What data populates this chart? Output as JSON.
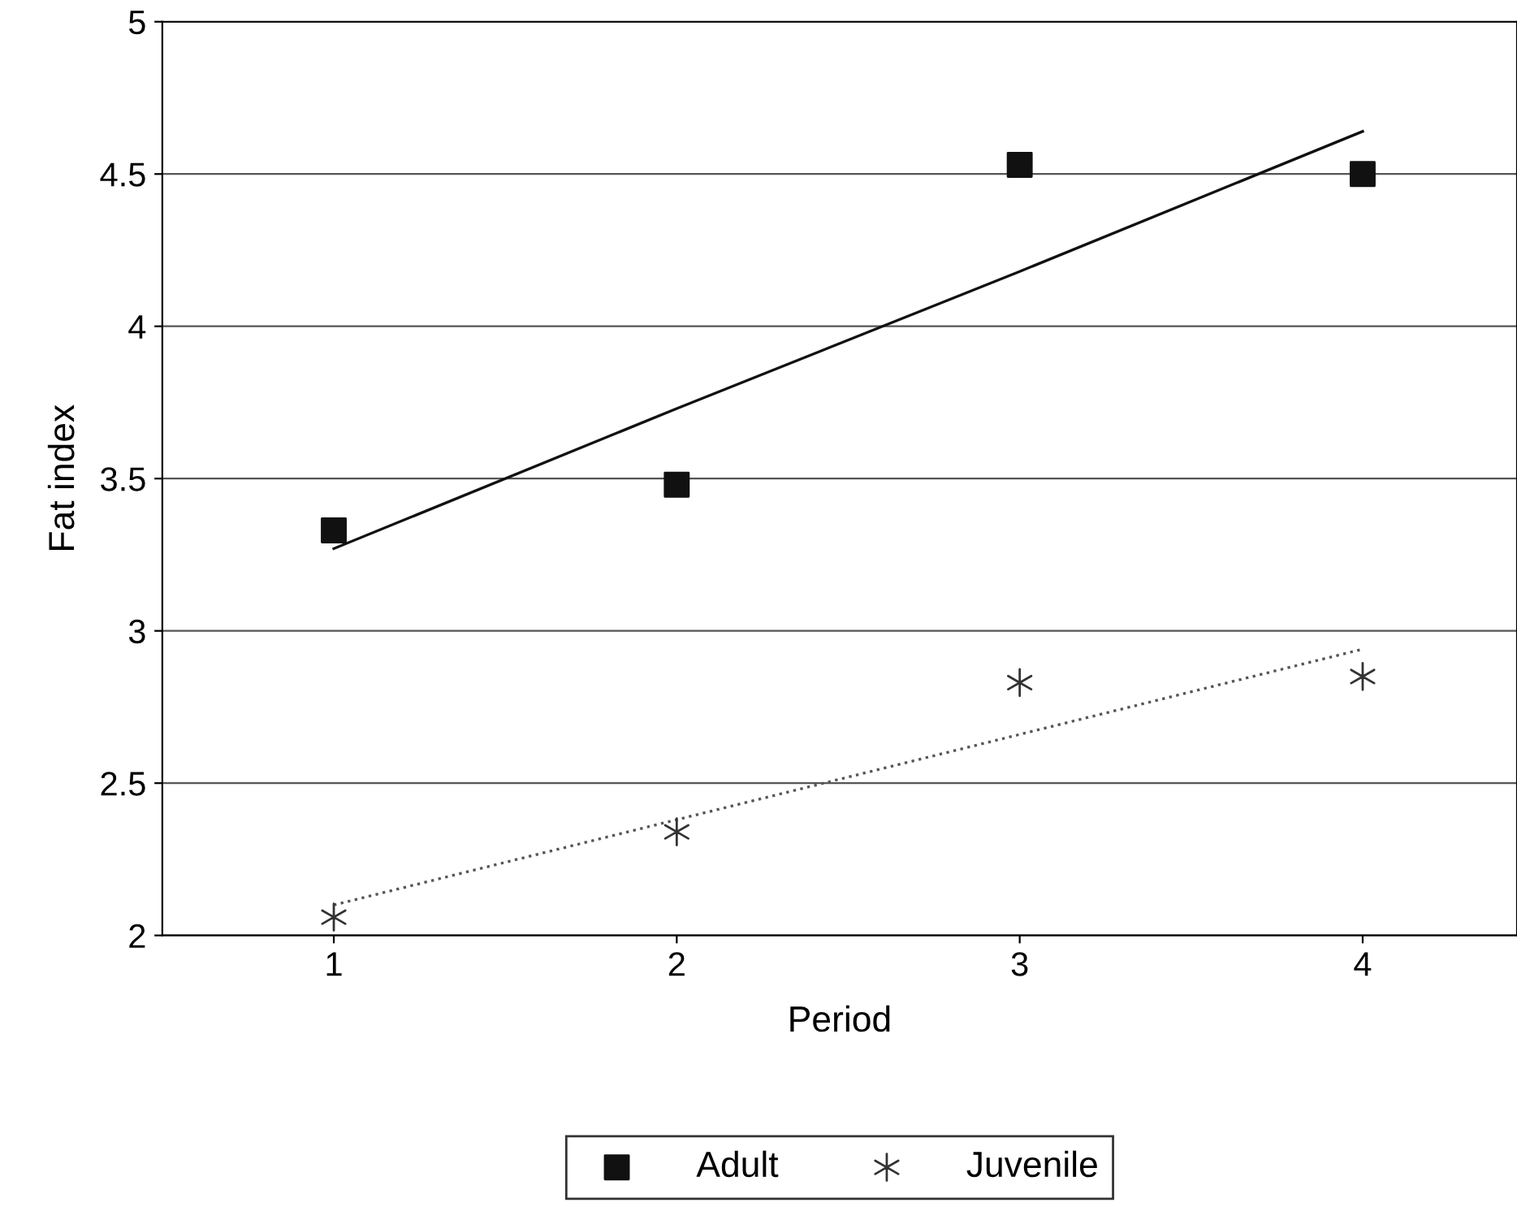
{
  "chart_data": {
    "type": "scatter",
    "xlabel": "Period",
    "ylabel": "Fat index",
    "x": [
      1,
      2,
      3,
      4
    ],
    "series": [
      {
        "name": "Adult",
        "color": "#111111",
        "values": [
          3.33,
          3.48,
          4.53,
          4.5
        ],
        "marker": "square"
      },
      {
        "name": "Juvenile",
        "color": "#333333",
        "values": [
          2.06,
          2.34,
          2.83,
          2.85
        ],
        "marker": "cross"
      },
      {
        "type": "line",
        "color": "#111111",
        "values": [
          3.27,
          3.73,
          4.18,
          4.64
        ],
        "line_style": "solid"
      },
      {
        "type": "line",
        "color": "#555555",
        "values": [
          2.1,
          2.38,
          2.66,
          2.94
        ],
        "line_style": "dotted"
      }
    ],
    "xlim": [
      0.5,
      4.45
    ],
    "xticks": [
      1,
      2,
      3,
      4
    ],
    "ylim": [
      2,
      5
    ],
    "yticks": [
      2,
      2.5,
      3,
      3.5,
      4,
      4.5,
      5
    ],
    "grid": "y",
    "legend": "bottom"
  }
}
